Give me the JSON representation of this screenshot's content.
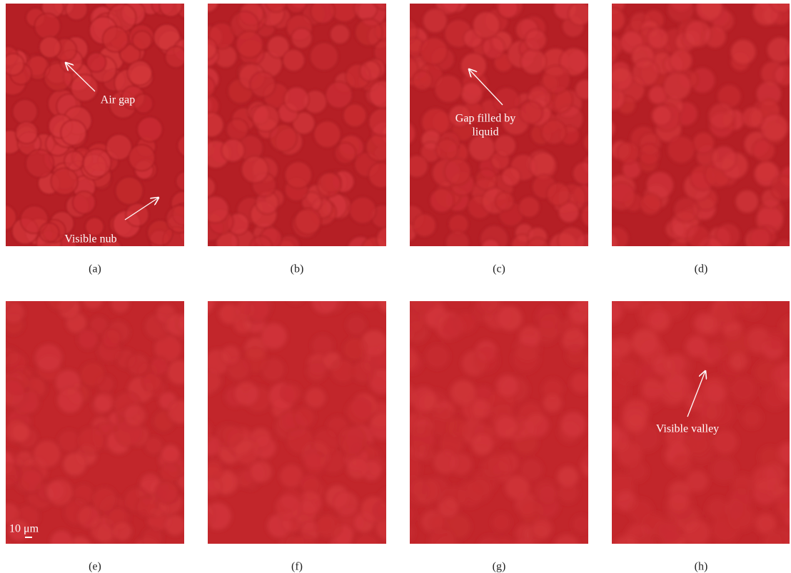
{
  "panels": [
    {
      "label": "(a)",
      "annotations": [
        {
          "lines": [
            "Air gap"
          ]
        },
        {
          "lines": [
            "Visible nub"
          ]
        }
      ]
    },
    {
      "label": "(b)",
      "annotations": []
    },
    {
      "label": "(c)",
      "annotations": [
        {
          "lines": [
            "Gap filled by",
            "liquid"
          ]
        }
      ]
    },
    {
      "label": "(d)",
      "annotations": []
    },
    {
      "label": "(e)",
      "annotations": [],
      "scale_bar": "10 μm"
    },
    {
      "label": "(f)",
      "annotations": []
    },
    {
      "label": "(g)",
      "annotations": []
    },
    {
      "label": "(h)",
      "annotations": [
        {
          "lines": [
            "Visible valley"
          ]
        }
      ]
    }
  ]
}
